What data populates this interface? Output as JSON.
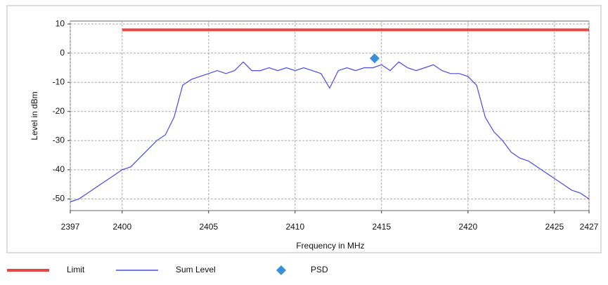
{
  "chart_data": {
    "type": "line",
    "xlabel": "Frequency in MHz",
    "ylabel": "Level in dBm",
    "xlim": [
      2397,
      2427
    ],
    "xticks": [
      2397,
      2400,
      2405,
      2410,
      2415,
      2420,
      2425,
      2427
    ],
    "ylim": [
      -54,
      11
    ],
    "yticks": [
      10,
      0,
      -10,
      -20,
      -30,
      -40,
      -50
    ],
    "grid": true,
    "series": [
      {
        "name": "Limit",
        "color": "#e84545",
        "x": [
          2400,
          2427
        ],
        "values": [
          8,
          8
        ]
      },
      {
        "name": "Sum Level",
        "color": "#4a4ae6",
        "x": [
          2397,
          2397.5,
          2398,
          2398.5,
          2399,
          2399.5,
          2400,
          2400.5,
          2401,
          2401.5,
          2402,
          2402.5,
          2403,
          2403.5,
          2404,
          2404.5,
          2405,
          2405.5,
          2406,
          2406.5,
          2407,
          2407.5,
          2408,
          2408.5,
          2409,
          2409.5,
          2410,
          2410.5,
          2411,
          2411.5,
          2412,
          2412.5,
          2413,
          2413.5,
          2414,
          2414.5,
          2415,
          2415.5,
          2416,
          2416.5,
          2417,
          2417.5,
          2418,
          2418.5,
          2419,
          2419.5,
          2420,
          2420.5,
          2421,
          2421.5,
          2422,
          2422.5,
          2423,
          2423.5,
          2424,
          2424.5,
          2425,
          2425.5,
          2426,
          2426.5,
          2427
        ],
        "values": [
          -51,
          -50,
          -48,
          -46,
          -44,
          -42,
          -40,
          -39,
          -36,
          -33,
          -30,
          -28,
          -22,
          -11,
          -9,
          -8,
          -7,
          -6,
          -7,
          -6,
          -3,
          -6,
          -6,
          -5,
          -6,
          -5,
          -6,
          -5,
          -6,
          -7,
          -12,
          -6,
          -5,
          -6,
          -5,
          -5,
          -4,
          -6,
          -3,
          -5,
          -6,
          -5,
          -4,
          -6,
          -7,
          -7,
          -8,
          -11,
          -22,
          -27,
          -30,
          -34,
          -36,
          -37,
          -39,
          -41,
          -43,
          -45,
          -47,
          -48,
          -50
        ]
      },
      {
        "name": "PSD",
        "color": "#3a8fd8",
        "type": "scatter",
        "x": [
          2414.6
        ],
        "values": [
          -1.8
        ]
      }
    ]
  }
}
